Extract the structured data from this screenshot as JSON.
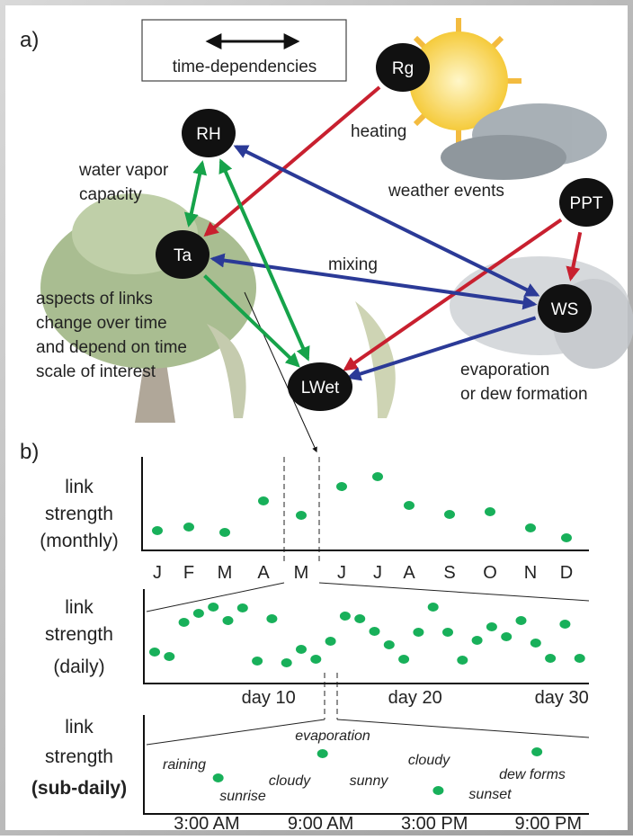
{
  "panel_a": {
    "label": "a)",
    "legend": "time-dependencies",
    "nodes": [
      {
        "label": "Rg"
      },
      {
        "label": "RH"
      },
      {
        "label": "PPT"
      },
      {
        "label": "Ta"
      },
      {
        "label": "WS"
      },
      {
        "label": "LWet"
      }
    ],
    "edges": [
      {
        "from": 0,
        "to": 3,
        "color": "#c8202f",
        "both": false
      },
      {
        "from": 2,
        "to": 5,
        "color": "#c8202f",
        "both": false
      },
      {
        "from": 2,
        "to": 4,
        "color": "#c8202f",
        "both": false
      },
      {
        "from": 1,
        "to": 4,
        "color": "#2b3a97",
        "both": true
      },
      {
        "from": 3,
        "to": 4,
        "color": "#2b3a97",
        "both": true
      },
      {
        "from": 4,
        "to": 5,
        "color": "#2b3a97",
        "both": false
      },
      {
        "from": 1,
        "to": 3,
        "color": "#16a34a",
        "both": true
      },
      {
        "from": 1,
        "to": 5,
        "color": "#16a34a",
        "both": true
      },
      {
        "from": 3,
        "to": 5,
        "color": "#16a34a",
        "both": false
      }
    ],
    "annotations": [
      [
        "heating"
      ],
      [
        "water vapor",
        "capacity"
      ],
      [
        "weather events"
      ],
      [
        "mixing"
      ],
      [
        "aspects of links",
        "change over time",
        "and depend on time",
        "scale of interest"
      ],
      [
        "evaporation",
        "or dew formation"
      ]
    ]
  },
  "panel_b": {
    "label": "b)",
    "monthly": {
      "y_label": [
        "link",
        "strength",
        "(monthly)"
      ],
      "categories": [
        "J",
        "F",
        "M",
        "A",
        "M",
        "J",
        "J",
        "A",
        "S",
        "O",
        "N",
        "D"
      ],
      "values": [
        0.22,
        0.26,
        0.2,
        0.55,
        0.39,
        0.71,
        0.82,
        0.5,
        0.4,
        0.43,
        0.25,
        0.14
      ]
    },
    "daily": {
      "y_label": [
        "link",
        "strength",
        "(daily)"
      ],
      "x": [
        1,
        2,
        3,
        4,
        5,
        6,
        7,
        8,
        9,
        10,
        11,
        12,
        13,
        14,
        15,
        16,
        17,
        18,
        19,
        20,
        21,
        22,
        23,
        24,
        25,
        26,
        27,
        28,
        29,
        30
      ],
      "values": [
        0.35,
        0.3,
        0.68,
        0.78,
        0.85,
        0.7,
        0.84,
        0.25,
        0.72,
        0.23,
        0.38,
        0.27,
        0.47,
        0.75,
        0.72,
        0.58,
        0.43,
        0.27,
        0.57,
        0.85,
        0.57,
        0.26,
        0.48,
        0.63,
        0.52,
        0.7,
        0.45,
        0.28,
        0.66,
        0.28
      ],
      "xticks": [
        {
          "value": 10,
          "label": "day 10"
        },
        {
          "value": 20,
          "label": "day 20"
        },
        {
          "value": 30,
          "label": "day 30"
        }
      ]
    },
    "subdaily": {
      "y_label": [
        "link",
        "strength",
        "(sub-daily)"
      ],
      "x": [
        3.6,
        9.1,
        15.2,
        20.4
      ],
      "values": [
        0.4,
        0.67,
        0.26,
        0.69
      ],
      "xticks": [
        {
          "value": 3,
          "label": "3:00 AM"
        },
        {
          "value": 9,
          "label": "9:00 AM"
        },
        {
          "value": 15,
          "label": "3:00 PM"
        },
        {
          "value": 21,
          "label": "9:00 PM"
        }
      ],
      "annotations": [
        "raining",
        "sunrise",
        "cloudy",
        "evaporation",
        "sunny",
        "cloudy",
        "sunset",
        "dew forms"
      ]
    }
  }
}
